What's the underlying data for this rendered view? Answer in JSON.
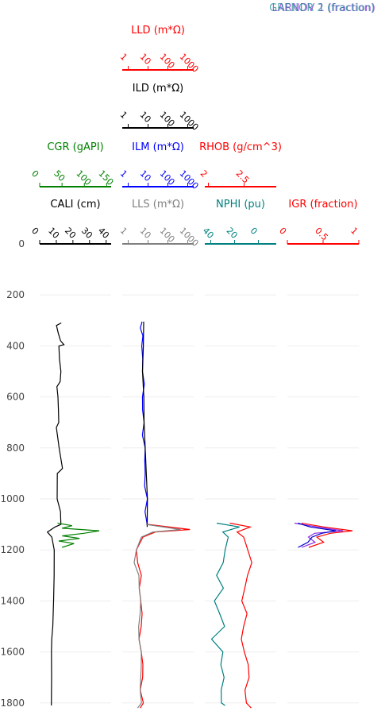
{
  "chart_data": {
    "type": "line",
    "orientation": "vertical-depth-log",
    "depth_axis": {
      "range": [
        0,
        1810
      ],
      "reversed": true,
      "ticks": [
        0,
        200,
        400,
        600,
        800,
        1000,
        1200,
        1400,
        1600,
        1800
      ],
      "tick_labels": [
        "0",
        "200",
        "400",
        "600",
        "800",
        "1000",
        "1200",
        "1400",
        "1600",
        "1800"
      ],
      "grid": true
    },
    "legend_overlap_text": [
      "LARNDV 1 (fraction)",
      "GRENOR 2 (fraction)"
    ],
    "tracks": [
      {
        "axes": [
          {
            "title": "CALI (cm)",
            "color": "#000000",
            "scale": "linear",
            "range": [
              0,
              43
            ],
            "ticks": [
              "0",
              "10",
              "20",
              "30",
              "40"
            ],
            "tick_values": [
              0,
              10,
              20,
              30,
              40
            ]
          },
          {
            "title": "CGR (gAPI)",
            "color": "#008000",
            "scale": "linear",
            "range": [
              0,
              160
            ],
            "ticks": [
              "0",
              "50",
              "100",
              "150"
            ],
            "tick_values": [
              0,
              50,
              100,
              150
            ]
          }
        ],
        "series": [
          {
            "name": "CALI",
            "color": "#000000",
            "axis": 0,
            "depth_range": [
              310,
              1810
            ],
            "points": [
              [
                310,
                13
              ],
              [
                320,
                11
              ],
              [
                350,
                12
              ],
              [
                380,
                13
              ],
              [
                395,
                15
              ],
              [
                400,
                12
              ],
              [
                450,
                11
              ],
              [
                500,
                12
              ],
              [
                540,
                13
              ],
              [
                560,
                11
              ],
              [
                600,
                11
              ],
              [
                650,
                11
              ],
              [
                700,
                12
              ],
              [
                720,
                11
              ],
              [
                800,
                11
              ],
              [
                880,
                14
              ],
              [
                890,
                12
              ],
              [
                900,
                11
              ],
              [
                1000,
                11
              ],
              [
                1050,
                12
              ],
              [
                1100,
                12
              ],
              [
                1110,
                9
              ],
              [
                1130,
                5
              ],
              [
                1150,
                7
              ],
              [
                1200,
                8
              ],
              [
                1300,
                8
              ],
              [
                1400,
                8
              ],
              [
                1500,
                8
              ],
              [
                1550,
                7
              ],
              [
                1600,
                7
              ],
              [
                1700,
                7
              ],
              [
                1810,
                7
              ]
            ]
          },
          {
            "name": "CGR",
            "color": "#008000",
            "axis": 1,
            "depth_range": [
              1095,
              1190
            ],
            "points": [
              [
                1095,
                40
              ],
              [
                1105,
                70
              ],
              [
                1115,
                50
              ],
              [
                1125,
                130
              ],
              [
                1135,
                100
              ],
              [
                1145,
                50
              ],
              [
                1155,
                90
              ],
              [
                1165,
                40
              ],
              [
                1175,
                80
              ],
              [
                1190,
                50
              ]
            ]
          }
        ]
      },
      {
        "axes": [
          {
            "title": "LLS (m*Ω)",
            "color": "#808080",
            "scale": "log",
            "range": [
              0.5,
              2000
            ],
            "ticks": [
              "1",
              "10",
              "100",
              "1000"
            ],
            "tick_values": [
              1,
              10,
              100,
              1000
            ]
          },
          {
            "title": "ILM (m*Ω)",
            "color": "#0000ff",
            "scale": "log",
            "range": [
              0.5,
              2000
            ],
            "ticks": [
              "1",
              "10",
              "100",
              "1000"
            ],
            "tick_values": [
              1,
              10,
              100,
              1000
            ]
          },
          {
            "title": "ILD (m*Ω)",
            "color": "#000000",
            "scale": "log",
            "range": [
              0.5,
              2000
            ],
            "ticks": [
              "1",
              "10",
              "100",
              "1000"
            ],
            "tick_values": [
              1,
              10,
              100,
              1000
            ]
          },
          {
            "title": "LLD (m*Ω)",
            "color": "#ff0000",
            "scale": "log",
            "range": [
              0.5,
              2000
            ],
            "ticks": [
              "1",
              "10",
              "100",
              "1000"
            ],
            "tick_values": [
              1,
              10,
              100,
              1000
            ]
          }
        ],
        "series": [
          {
            "name": "ILM",
            "color": "#0000ff",
            "axis": 1,
            "depth_range": [
              305,
              1100
            ],
            "points": [
              [
                305,
                5
              ],
              [
                330,
                4
              ],
              [
                360,
                6
              ],
              [
                400,
                5
              ],
              [
                450,
                5
              ],
              [
                500,
                6
              ],
              [
                550,
                7
              ],
              [
                600,
                6
              ],
              [
                650,
                6
              ],
              [
                700,
                7
              ],
              [
                750,
                6
              ],
              [
                800,
                7
              ],
              [
                850,
                7
              ],
              [
                900,
                7
              ],
              [
                950,
                8
              ],
              [
                1000,
                8
              ],
              [
                1050,
                8
              ],
              [
                1100,
                9
              ]
            ]
          },
          {
            "name": "ILD",
            "color": "#000000",
            "axis": 2,
            "depth_range": [
              305,
              1110
            ],
            "points": [
              [
                305,
                6
              ],
              [
                400,
                6
              ],
              [
                500,
                6
              ],
              [
                600,
                7
              ],
              [
                700,
                7
              ],
              [
                800,
                7
              ],
              [
                900,
                8
              ],
              [
                1000,
                8
              ],
              [
                1110,
                9
              ]
            ]
          },
          {
            "name": "LLD",
            "color": "#ff0000",
            "axis": 3,
            "depth_range": [
              1100,
              1820
            ],
            "points": [
              [
                1100,
                10
              ],
              [
                1120,
                1500
              ],
              [
                1130,
                20
              ],
              [
                1150,
                6
              ],
              [
                1200,
                3
              ],
              [
                1250,
                3
              ],
              [
                1300,
                4
              ],
              [
                1350,
                3
              ],
              [
                1400,
                4
              ],
              [
                1450,
                5
              ],
              [
                1500,
                4
              ],
              [
                1550,
                3
              ],
              [
                1600,
                4
              ],
              [
                1650,
                6
              ],
              [
                1700,
                5
              ],
              [
                1750,
                4
              ],
              [
                1800,
                5
              ],
              [
                1820,
                4
              ]
            ]
          },
          {
            "name": "LLS",
            "color": "#808080",
            "axis": 0,
            "depth_range": [
              1100,
              1820
            ],
            "points": [
              [
                1100,
                8
              ],
              [
                1120,
                500
              ],
              [
                1130,
                15
              ],
              [
                1150,
                5
              ],
              [
                1200,
                3
              ],
              [
                1250,
                2
              ],
              [
                1300,
                3
              ],
              [
                1350,
                3
              ],
              [
                1400,
                4
              ],
              [
                1450,
                4
              ],
              [
                1500,
                3
              ],
              [
                1550,
                3
              ],
              [
                1600,
                4
              ],
              [
                1650,
                5
              ],
              [
                1700,
                4
              ],
              [
                1750,
                4
              ],
              [
                1800,
                4
              ],
              [
                1820,
                3
              ]
            ]
          }
        ]
      },
      {
        "axes": [
          {
            "title": "NPHI (pu)",
            "color": "#008080",
            "scale": "linear",
            "range": [
              45,
              -15
            ],
            "ticks": [
              "40",
              "20",
              "0"
            ],
            "tick_values": [
              40,
              20,
              0
            ]
          },
          {
            "title": "RHOB (g/cm^3)",
            "color": "#ff0000",
            "scale": "linear",
            "range": [
              1.95,
              2.95
            ],
            "ticks": [
              "2",
              "2.5"
            ],
            "tick_values": [
              2,
              2.5
            ]
          }
        ],
        "series": [
          {
            "name": "RHOB",
            "color": "#ff0000",
            "axis": 1,
            "depth_range": [
              1095,
              1820
            ],
            "points": [
              [
                1095,
                2.3
              ],
              [
                1110,
                2.6
              ],
              [
                1130,
                2.4
              ],
              [
                1150,
                2.5
              ],
              [
                1200,
                2.55
              ],
              [
                1250,
                2.6
              ],
              [
                1300,
                2.55
              ],
              [
                1350,
                2.5
              ],
              [
                1400,
                2.45
              ],
              [
                1450,
                2.55
              ],
              [
                1500,
                2.5
              ],
              [
                1550,
                2.45
              ],
              [
                1600,
                2.5
              ],
              [
                1650,
                2.55
              ],
              [
                1700,
                2.55
              ],
              [
                1750,
                2.5
              ],
              [
                1800,
                2.55
              ],
              [
                1820,
                2.6
              ]
            ]
          },
          {
            "name": "NPHI",
            "color": "#008080",
            "axis": 0,
            "depth_range": [
              1095,
              1810
            ],
            "points": [
              [
                1095,
                35
              ],
              [
                1110,
                15
              ],
              [
                1130,
                30
              ],
              [
                1150,
                25
              ],
              [
                1200,
                28
              ],
              [
                1250,
                30
              ],
              [
                1300,
                35
              ],
              [
                1350,
                30
              ],
              [
                1400,
                38
              ],
              [
                1450,
                32
              ],
              [
                1500,
                28
              ],
              [
                1550,
                40
              ],
              [
                1600,
                30
              ],
              [
                1650,
                32
              ],
              [
                1700,
                30
              ],
              [
                1750,
                32
              ],
              [
                1800,
                30
              ],
              [
                1810,
                28
              ]
            ]
          }
        ]
      },
      {
        "axes": [
          {
            "title": "IGR (fraction)",
            "color": "#ff0000",
            "scale": "linear",
            "range": [
              0,
              1
            ],
            "ticks": [
              "0",
              "0.5",
              "1"
            ],
            "tick_values": [
              0,
              0.5,
              1
            ]
          }
        ],
        "series": [
          {
            "name": "IGR",
            "color": "#ff0000",
            "axis": 0,
            "depth_range": [
              1095,
              1190
            ],
            "points": [
              [
                1095,
                0.2
              ],
              [
                1110,
                0.5
              ],
              [
                1125,
                0.9
              ],
              [
                1135,
                0.6
              ],
              [
                1150,
                0.4
              ],
              [
                1170,
                0.5
              ],
              [
                1190,
                0.3
              ]
            ]
          },
          {
            "name": "LARNDV 1",
            "color": "#8a2be2",
            "axis": 0,
            "depth_range": [
              1095,
              1190
            ],
            "points": [
              [
                1095,
                0.1
              ],
              [
                1110,
                0.4
              ],
              [
                1125,
                0.8
              ],
              [
                1135,
                0.4
              ],
              [
                1150,
                0.3
              ],
              [
                1170,
                0.4
              ],
              [
                1190,
                0.2
              ]
            ]
          },
          {
            "name": "GRENOR 2",
            "color": "#0000cd",
            "axis": 0,
            "depth_range": [
              1095,
              1190
            ],
            "points": [
              [
                1095,
                0.15
              ],
              [
                1110,
                0.3
              ],
              [
                1125,
                0.7
              ],
              [
                1135,
                0.5
              ],
              [
                1150,
                0.35
              ],
              [
                1170,
                0.3
              ],
              [
                1190,
                0.15
              ]
            ]
          }
        ]
      }
    ]
  }
}
